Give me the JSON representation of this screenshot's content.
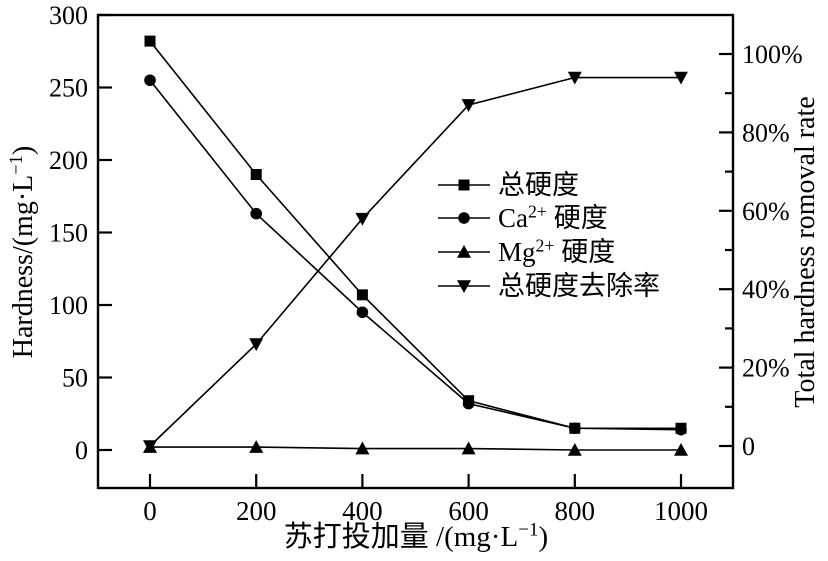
{
  "chart_data": {
    "type": "line",
    "x": [
      0,
      200,
      400,
      600,
      800,
      1000
    ],
    "x_tick_labels": [
      "0",
      "200",
      "400",
      "600",
      "800",
      "1000"
    ],
    "y_left_tick_labels": [
      "0",
      "50",
      "100",
      "150",
      "200",
      "250",
      "300"
    ],
    "y_right_tick_labels": [
      "0",
      "20%",
      "40%",
      "60%",
      "80%",
      "100%"
    ],
    "y_right_minor_ticks": [
      10,
      30,
      50,
      70,
      90
    ],
    "y_left_range": [
      0,
      300
    ],
    "y_right_range": [
      0,
      100
    ],
    "x_label": {
      "pre": "苏打投加量 /(mg·L",
      "sup": "−1",
      "post": ")"
    },
    "y_left_label": {
      "pre": "Hardness/(mg·L",
      "sup": "−1",
      "post": ")"
    },
    "y_right_label": {
      "pre": "Total hardness romoval rate",
      "sup": "",
      "post": ""
    },
    "grid": false,
    "legend_position": "center-right",
    "series": [
      {
        "key": "total-hardness",
        "label": {
          "pre": "总硬度",
          "sup": "",
          "post": ""
        },
        "axis": "left",
        "marker": "square",
        "values": [
          282,
          190,
          107,
          34,
          15,
          15
        ]
      },
      {
        "key": "ca-hardness",
        "label": {
          "pre": "Ca",
          "sup": "2+",
          "post": " 硬度"
        },
        "axis": "left",
        "marker": "circle",
        "values": [
          255,
          163,
          95,
          32,
          15,
          14
        ]
      },
      {
        "key": "mg-hardness",
        "label": {
          "pre": "Mg",
          "sup": "2+",
          "post": " 硬度"
        },
        "axis": "left",
        "marker": "triangle-up",
        "values": [
          2,
          2,
          1,
          1,
          0,
          0
        ]
      },
      {
        "key": "total-hardness-removal-rate",
        "label": {
          "pre": "总硬度去除率",
          "sup": "",
          "post": ""
        },
        "axis": "right",
        "marker": "triangle-down",
        "values": [
          0,
          26,
          58,
          87,
          94,
          94
        ]
      }
    ],
    "colors": {
      "foreground": "#000000",
      "background": "#ffffff"
    }
  }
}
